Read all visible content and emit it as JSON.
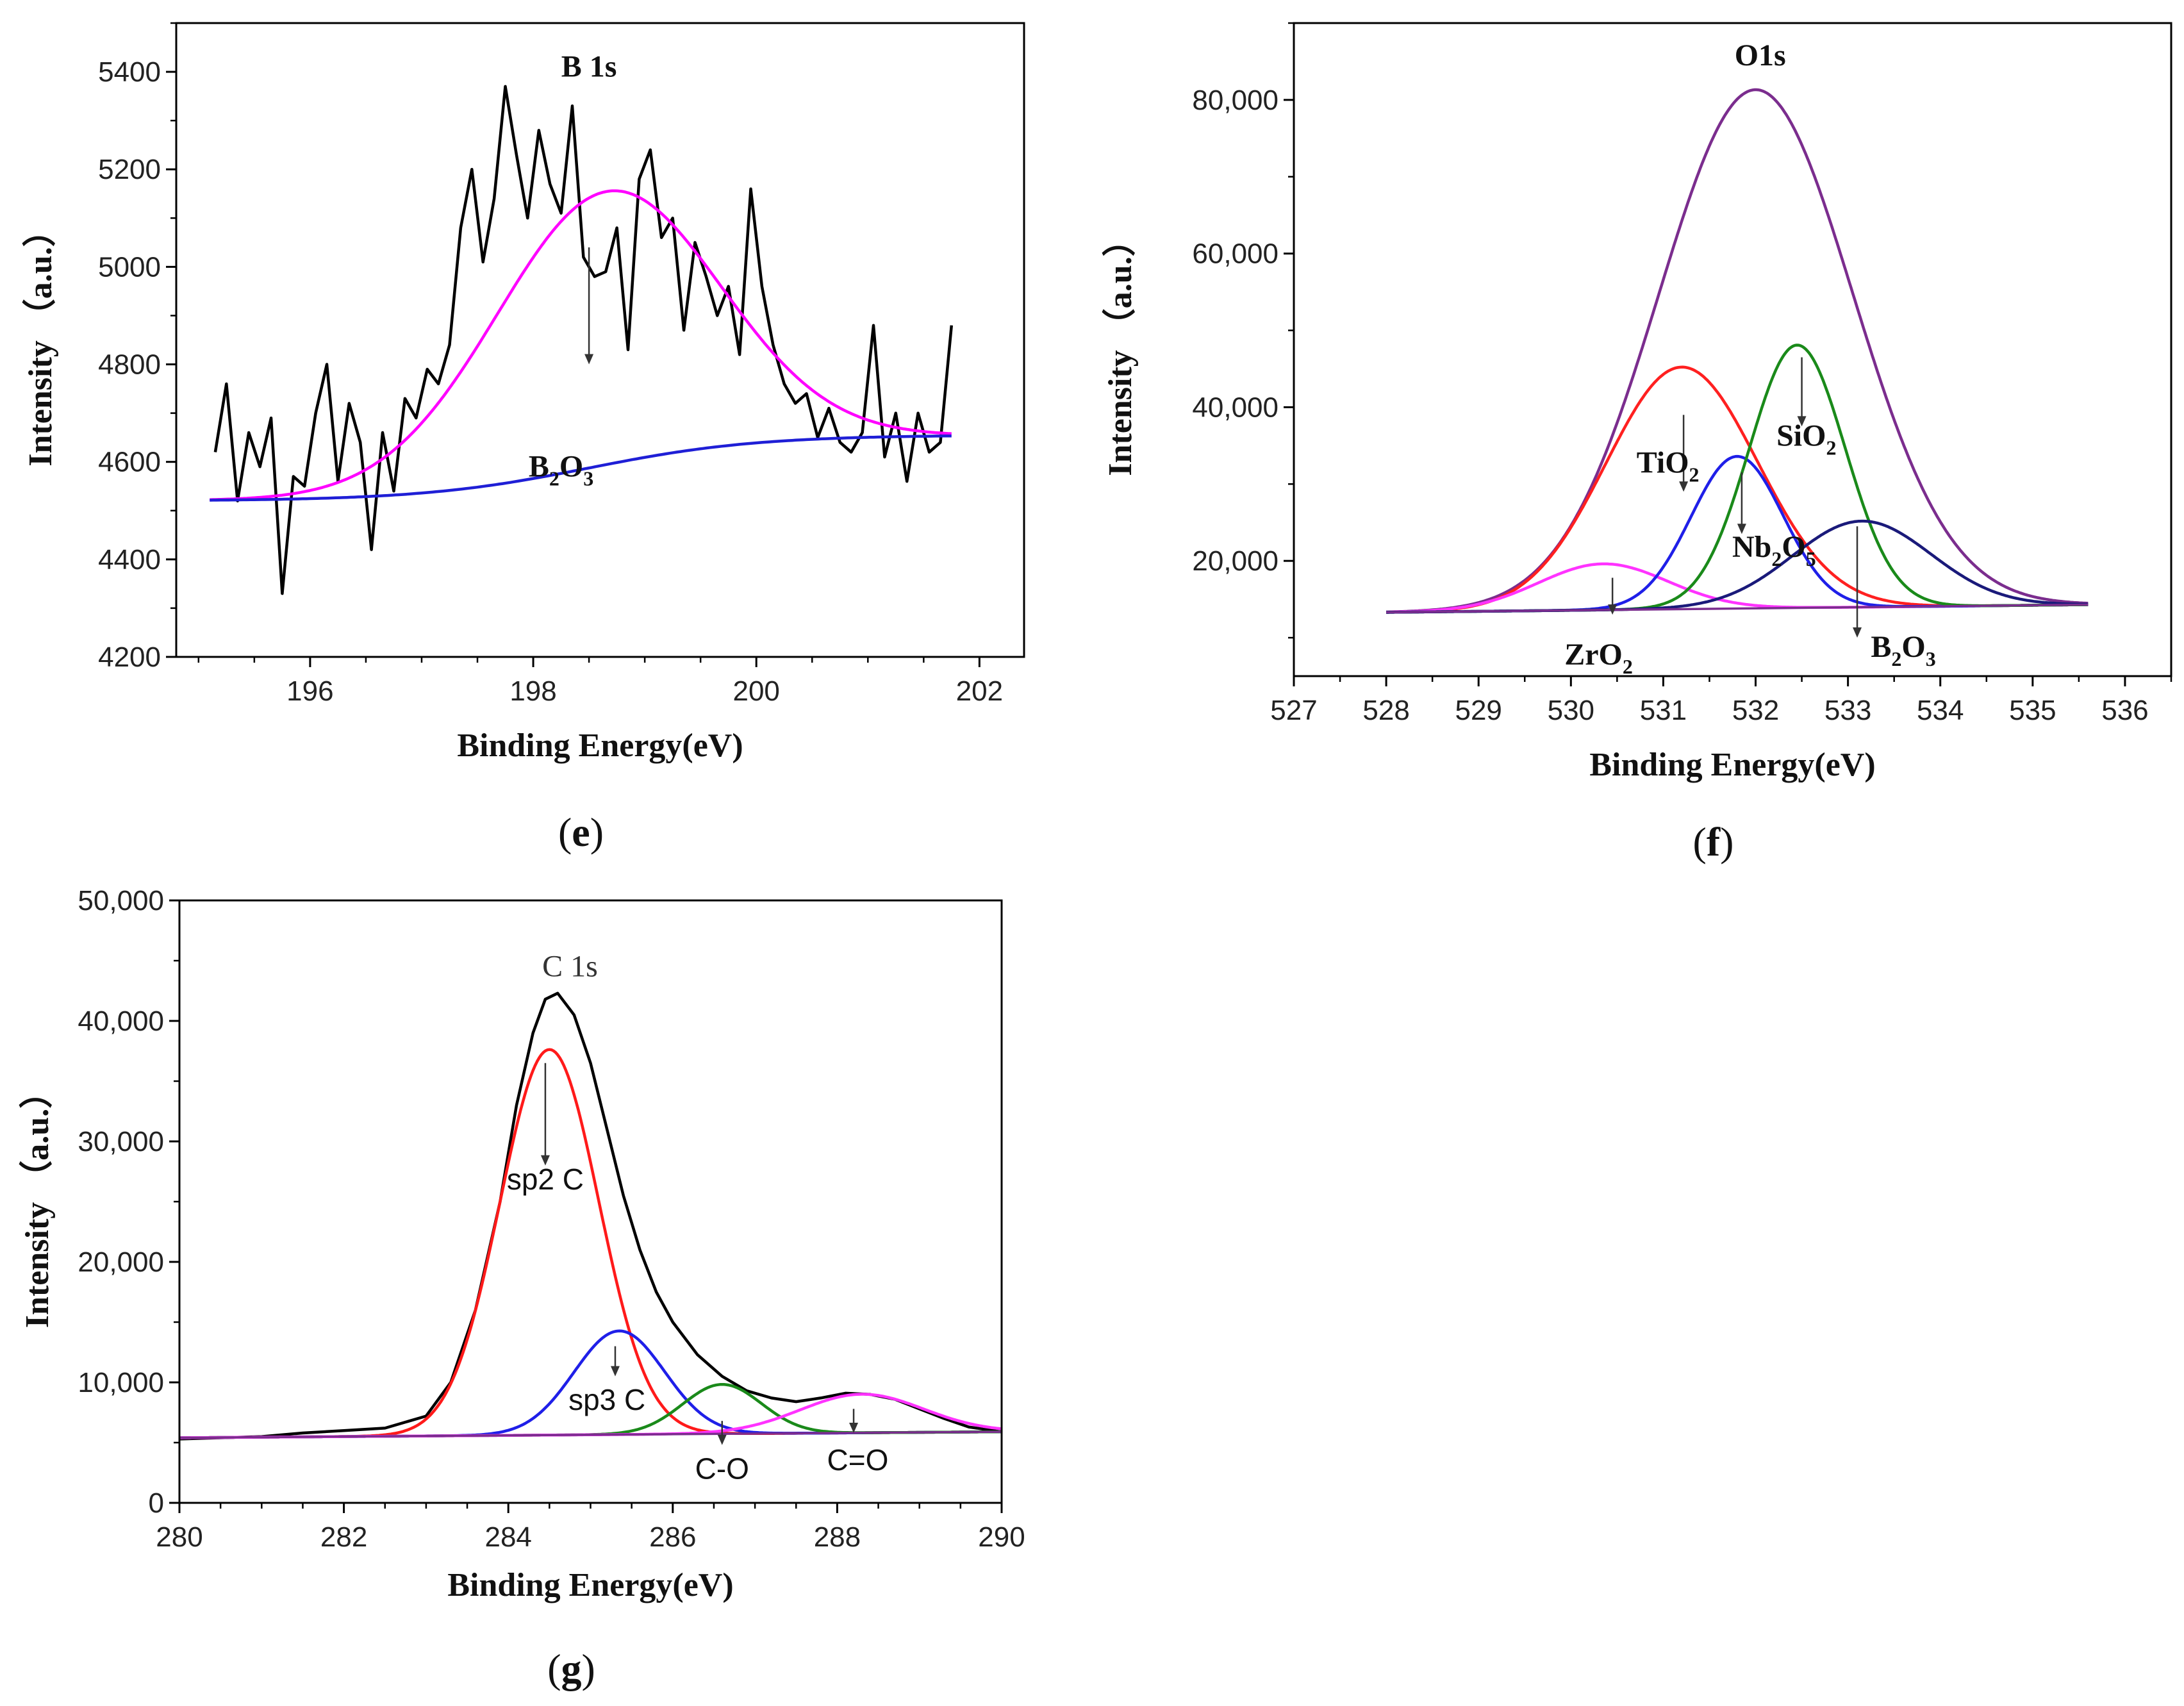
{
  "chart_data": [
    {
      "id": "e",
      "type": "line",
      "caption": "e",
      "xlabel": "Binding Energy(eV)",
      "ylabel": "Intensity （a.u.）",
      "xlim": [
        194.8,
        202.4
      ],
      "ylim": [
        4200,
        5500
      ],
      "xticks": [
        196,
        198,
        200,
        202
      ],
      "xtick_labels": [
        "196",
        "198",
        "200",
        "202"
      ],
      "yticks": [
        4200,
        4400,
        4600,
        4800,
        5000,
        5200,
        5400
      ],
      "ytick_labels": [
        "4200",
        "4400",
        "4600",
        "4800",
        "5000",
        "5200",
        "5400"
      ],
      "series": [
        {
          "name": "raw",
          "color": "#000000",
          "x": [
            195.15,
            195.25,
            195.35,
            195.45,
            195.55,
            195.65,
            195.75,
            195.85,
            195.95,
            196.05,
            196.15,
            196.25,
            196.35,
            196.45,
            196.55,
            196.65,
            196.75,
            196.85,
            196.95,
            197.05,
            197.15,
            197.25,
            197.35,
            197.45,
            197.55,
            197.65,
            197.75,
            197.85,
            197.95,
            198.05,
            198.15,
            198.25,
            198.35,
            198.45,
            198.55,
            198.65,
            198.75,
            198.85,
            198.95,
            199.05,
            199.15,
            199.25,
            199.35,
            199.45,
            199.55,
            199.65,
            199.75,
            199.85,
            199.95,
            200.05,
            200.15,
            200.25,
            200.35,
            200.45,
            200.55,
            200.65,
            200.75,
            200.85,
            200.95,
            201.05,
            201.15,
            201.25,
            201.35,
            201.45,
            201.55,
            201.65,
            201.75
          ],
          "y": [
            4620,
            4760,
            4520,
            4660,
            4590,
            4690,
            4330,
            4570,
            4550,
            4700,
            4800,
            4560,
            4720,
            4640,
            4420,
            4660,
            4540,
            4730,
            4690,
            4790,
            4760,
            4840,
            5080,
            5200,
            5010,
            5140,
            5370,
            5230,
            5100,
            5280,
            5170,
            5110,
            5330,
            5020,
            4980,
            4990,
            5080,
            4830,
            5180,
            5240,
            5060,
            5100,
            4870,
            5050,
            4980,
            4900,
            4960,
            4820,
            5160,
            4960,
            4840,
            4760,
            4720,
            4740,
            4650,
            4710,
            4640,
            4620,
            4660,
            4880,
            4610,
            4700,
            4560,
            4700,
            4620,
            4640,
            4880
          ]
        },
        {
          "name": "fit",
          "color": "#ff00ff",
          "kind": "gauss",
          "baseline": "blue",
          "center": 198.65,
          "amplitude": 560,
          "sigma": 1.0
        },
        {
          "name": "background",
          "color": "#1f1fd6",
          "kind": "sigmoid",
          "low": 4520,
          "high": 4655,
          "mid": 198.5,
          "scale": 0.75,
          "x_from": 195.1,
          "x_to": 201.75
        }
      ],
      "annotations": [
        {
          "text": "B 1s",
          "x": 198.5,
          "y": 5390
        },
        {
          "text_main": "B",
          "sub1": "2",
          "mid": "O",
          "sub2": "3",
          "x": 198.25,
          "y": 4570,
          "arrow_from": 5040,
          "arrow_to": 4800,
          "arrow_x": 198.5
        }
      ]
    },
    {
      "id": "f",
      "type": "line",
      "caption": "f",
      "xlabel": "Binding Energy(eV)",
      "ylabel": "Intensity （a.u.）",
      "xlim": [
        527,
        536.5
      ],
      "ylim": [
        5000,
        90000
      ],
      "xticks": [
        527,
        528,
        529,
        530,
        531,
        532,
        533,
        534,
        535,
        536
      ],
      "xtick_labels": [
        "527",
        "528",
        "529",
        "530",
        "531",
        "532",
        "533",
        "534",
        "535",
        "536"
      ],
      "yticks": [
        20000,
        40000,
        60000,
        80000
      ],
      "ytick_labels": [
        "20,000",
        "40,000",
        "60,000",
        "80,000"
      ],
      "baseline": {
        "x0": 528.0,
        "y0": 13300,
        "x1": 535.6,
        "y1": 14300
      },
      "series": [
        {
          "name": "envelope",
          "color": "#7b2d8e",
          "kind": "gauss",
          "center": 532.0,
          "amplitude": 67500,
          "sigma": 1.05
        },
        {
          "name": "TiO2",
          "color": "#ff2020",
          "kind": "gauss",
          "center": 531.2,
          "amplitude": 31500,
          "sigma": 0.82
        },
        {
          "name": "ZrO2",
          "color": "#ff33ff",
          "kind": "gauss",
          "center": 530.35,
          "amplitude": 6000,
          "sigma": 0.7
        },
        {
          "name": "Nb2O5",
          "color": "#1f1fe8",
          "kind": "gauss",
          "center": 531.8,
          "amplitude": 19800,
          "sigma": 0.5
        },
        {
          "name": "SiO2",
          "color": "#1a8a1a",
          "kind": "gauss",
          "center": 532.45,
          "amplitude": 34200,
          "sigma": 0.52
        },
        {
          "name": "B2O3",
          "color": "#1a1a7a",
          "kind": "gauss",
          "center": 533.15,
          "amplitude": 11200,
          "sigma": 0.75
        }
      ],
      "annotations": [
        {
          "text": "O1s",
          "x": 532.05,
          "y": 84500
        },
        {
          "text_main": "Ti",
          "mid": "O",
          "sub1": "",
          "sub2": "2",
          "x": 531.05,
          "y": 31500,
          "arrow_x": 531.22,
          "arrow_from": 39000,
          "arrow_to": 29000
        },
        {
          "text_main": "Si",
          "mid": "O",
          "sub1": "",
          "sub2": "2",
          "x": 532.55,
          "y": 35000,
          "arrow_x": 532.5,
          "arrow_from": 46500,
          "arrow_to": 37500
        },
        {
          "text_main": "Nb",
          "sub1": "2",
          "mid": "O",
          "sub2": "5",
          "x": 532.2,
          "y": 20500,
          "arrow_x": 531.85,
          "arrow_from": 31500,
          "arrow_to": 23500
        },
        {
          "text_main": "Zr",
          "mid": "O",
          "sub1": "",
          "sub2": "2",
          "x": 530.3,
          "y": 6500,
          "arrow_x": 530.45,
          "arrow_from": 17800,
          "arrow_to": 13000
        },
        {
          "text_main": "B",
          "sub1": "2",
          "mid": "O",
          "sub2": "3",
          "x": 533.6,
          "y": 7500,
          "arrow_x": 533.1,
          "arrow_from": 24500,
          "arrow_to": 10000
        }
      ]
    },
    {
      "id": "g",
      "type": "line",
      "caption": "g",
      "xlabel": "Binding Energy(eV)",
      "ylabel": "Intensity （a.u.）",
      "xlim": [
        280,
        290
      ],
      "ylim": [
        0,
        50000
      ],
      "xticks": [
        280,
        282,
        284,
        286,
        288,
        290
      ],
      "xtick_labels": [
        "280",
        "282",
        "284",
        "286",
        "288",
        "290"
      ],
      "yticks": [
        0,
        10000,
        20000,
        30000,
        40000,
        50000
      ],
      "ytick_labels": [
        "0",
        "10,000",
        "20,000",
        "30,000",
        "40,000",
        "50,000"
      ],
      "baseline": {
        "x0": 280,
        "y0": 5400,
        "x1": 290,
        "y1": 5900
      },
      "series": [
        {
          "name": "raw",
          "color": "#000000",
          "x": [
            280.0,
            280.5,
            281.0,
            281.5,
            282.0,
            282.5,
            283.0,
            283.3,
            283.6,
            283.9,
            284.1,
            284.3,
            284.45,
            284.6,
            284.8,
            285.0,
            285.2,
            285.4,
            285.6,
            285.8,
            286.0,
            286.3,
            286.6,
            286.9,
            287.2,
            287.5,
            287.8,
            288.1,
            288.4,
            288.7,
            289.0,
            289.3,
            289.6,
            290.0
          ],
          "y": [
            5300,
            5400,
            5500,
            5800,
            6000,
            6200,
            7200,
            10000,
            16000,
            25000,
            33000,
            39000,
            41800,
            42300,
            40500,
            36500,
            31000,
            25500,
            21000,
            17500,
            15000,
            12300,
            10500,
            9300,
            8700,
            8400,
            8700,
            9100,
            9000,
            8600,
            7800,
            7000,
            6300,
            5900
          ]
        },
        {
          "name": "sp2 C",
          "color": "#ff1a1a",
          "kind": "gauss",
          "center": 284.5,
          "amplitude": 32000,
          "sigma": 0.6
        },
        {
          "name": "sp3 C",
          "color": "#1f1fe8",
          "kind": "gauss",
          "center": 285.35,
          "amplitude": 8600,
          "sigma": 0.55
        },
        {
          "name": "C-O",
          "color": "#1a8a1a",
          "kind": "gauss",
          "center": 286.6,
          "amplitude": 4100,
          "sigma": 0.48
        },
        {
          "name": "C=O",
          "color": "#ff33ff",
          "kind": "gauss",
          "center": 288.3,
          "amplitude": 3200,
          "sigma": 0.75
        }
      ],
      "annotations": [
        {
          "text": "C 1s",
          "x": 284.75,
          "y": 43700,
          "style": "serif"
        },
        {
          "text": "sp2 C",
          "x": 284.45,
          "y": 26000,
          "arrow_x": 284.45,
          "arrow_from": 36500,
          "arrow_to": 28000
        },
        {
          "text": "sp3 C",
          "x": 285.2,
          "y": 7700,
          "arrow_x": 285.3,
          "arrow_from": 13000,
          "arrow_to": 10500
        },
        {
          "text": "C-O",
          "x": 286.6,
          "y": 2000,
          "arrow_x": 286.6,
          "arrow_from": 6800,
          "arrow_to": 4800
        },
        {
          "text": "C=O",
          "x": 288.25,
          "y": 2700,
          "arrow_x": 288.2,
          "arrow_from": 7800,
          "arrow_to": 5800
        }
      ]
    }
  ]
}
